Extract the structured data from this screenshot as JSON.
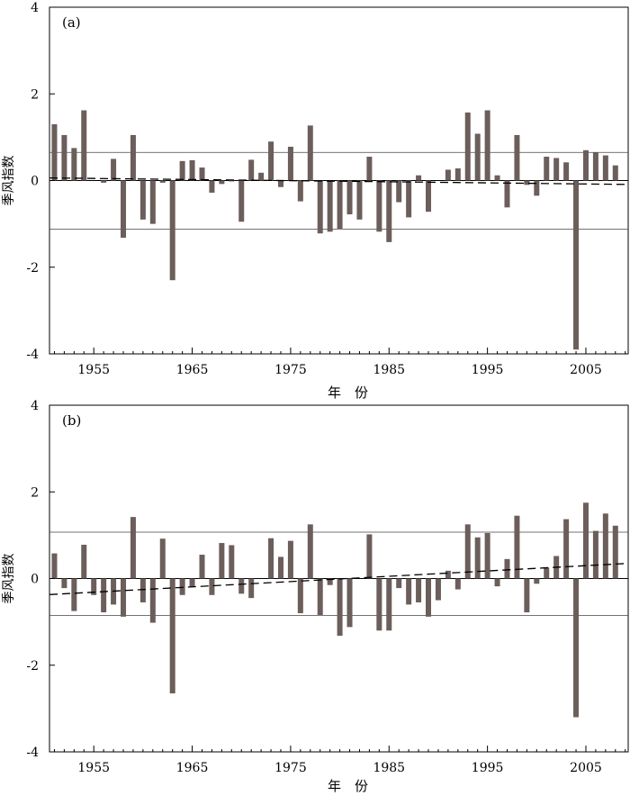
{
  "chart_data": [
    {
      "type": "bar",
      "panel_label": "(a)",
      "ylabel": "季风指数",
      "xlabel": "年　份",
      "ylim": [
        -4,
        4
      ],
      "yticks": [
        -4,
        -2,
        0,
        2,
        4
      ],
      "xlim": [
        1950.5,
        2009.3
      ],
      "xticks": [
        1955,
        1965,
        1975,
        1985,
        1995,
        2005
      ],
      "bar_color": "#6b5e5b",
      "x": [
        1951,
        1952,
        1953,
        1954,
        1955,
        1956,
        1957,
        1958,
        1959,
        1960,
        1961,
        1962,
        1963,
        1964,
        1965,
        1966,
        1967,
        1968,
        1969,
        1970,
        1971,
        1972,
        1973,
        1974,
        1975,
        1976,
        1977,
        1978,
        1979,
        1980,
        1981,
        1982,
        1983,
        1984,
        1985,
        1986,
        1987,
        1988,
        1989,
        1990,
        1991,
        1992,
        1993,
        1994,
        1995,
        1996,
        1997,
        1998,
        1999,
        2000,
        2001,
        2002,
        2003,
        2004,
        2005,
        2006,
        2007,
        2008,
        2009
      ],
      "values": [
        1.3,
        1.05,
        0.75,
        1.62,
        0.0,
        -0.05,
        0.5,
        -1.32,
        1.05,
        -0.9,
        -1.0,
        -0.05,
        -2.3,
        0.45,
        0.47,
        0.3,
        -0.28,
        -0.08,
        -0.02,
        -0.95,
        0.48,
        0.18,
        0.9,
        -0.15,
        0.78,
        -0.48,
        1.27,
        -1.22,
        -1.18,
        -1.12,
        -0.78,
        -0.9,
        0.55,
        -1.18,
        -1.42,
        -0.5,
        -0.85,
        0.12,
        -0.72,
        0.0,
        0.25,
        0.28,
        1.57,
        1.08,
        1.62,
        0.12,
        -0.62,
        1.05,
        -0.1,
        -0.35,
        0.55,
        0.52,
        0.42,
        -3.9,
        0.7,
        0.65,
        0.58,
        0.35,
        0.0
      ],
      "reference_lines": [
        0.65,
        -1.12
      ],
      "trend": {
        "x": [
          1950.5,
          2009.3
        ],
        "y": [
          0.06,
          -0.09
        ]
      }
    },
    {
      "type": "bar",
      "panel_label": "(b)",
      "ylabel": "季风指数",
      "xlabel": "年　份",
      "ylim": [
        -4,
        4
      ],
      "yticks": [
        -4,
        -2,
        0,
        2,
        4
      ],
      "xlim": [
        1950.5,
        2009.3
      ],
      "xticks": [
        1955,
        1965,
        1975,
        1985,
        1995,
        2005
      ],
      "bar_color": "#6b5e5b",
      "x": [
        1951,
        1952,
        1953,
        1954,
        1955,
        1956,
        1957,
        1958,
        1959,
        1960,
        1961,
        1962,
        1963,
        1964,
        1965,
        1966,
        1967,
        1968,
        1969,
        1970,
        1971,
        1972,
        1973,
        1974,
        1975,
        1976,
        1977,
        1978,
        1979,
        1980,
        1981,
        1982,
        1983,
        1984,
        1985,
        1986,
        1987,
        1988,
        1989,
        1990,
        1991,
        1992,
        1993,
        1994,
        1995,
        1996,
        1997,
        1998,
        1999,
        2000,
        2001,
        2002,
        2003,
        2004,
        2005,
        2006,
        2007,
        2008,
        2009
      ],
      "values": [
        0.58,
        -0.22,
        -0.75,
        0.78,
        -0.38,
        -0.78,
        -0.6,
        -0.88,
        1.42,
        -0.55,
        -1.02,
        0.92,
        -2.65,
        -0.38,
        -0.2,
        0.55,
        -0.38,
        0.82,
        0.77,
        -0.35,
        -0.45,
        0.0,
        0.93,
        0.5,
        0.87,
        -0.8,
        1.25,
        -0.85,
        -0.15,
        -1.32,
        -1.12,
        0.0,
        1.02,
        -1.2,
        -1.2,
        -0.22,
        -0.6,
        -0.55,
        -0.88,
        -0.5,
        0.18,
        -0.25,
        1.25,
        0.95,
        1.05,
        -0.18,
        0.45,
        1.45,
        -0.78,
        -0.12,
        0.25,
        0.52,
        1.37,
        -3.2,
        1.75,
        1.1,
        1.5,
        1.22,
        0.0
      ],
      "reference_lines": [
        1.07,
        -0.85
      ],
      "trend": {
        "x": [
          1950.5,
          2009.3
        ],
        "y": [
          -0.37,
          0.35
        ]
      }
    }
  ]
}
